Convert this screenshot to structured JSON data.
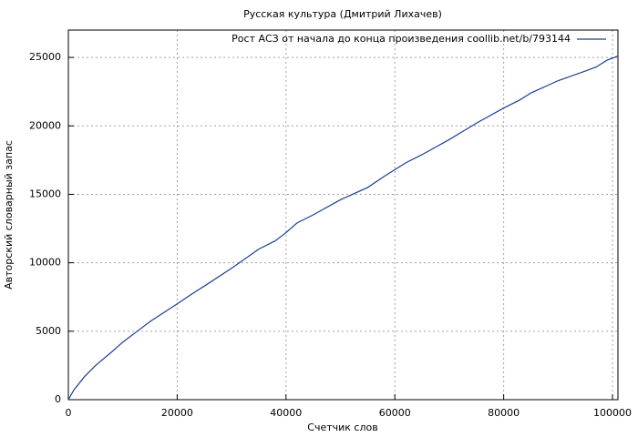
{
  "chart_data": {
    "type": "line",
    "title": "Русская культура (Дмитрий Лихачев)",
    "x_label": "Счетчик слов",
    "y_label": "Авторский словарный запас",
    "x": [
      0,
      1000,
      3000,
      5000,
      8000,
      10000,
      13000,
      15000,
      20000,
      23000,
      25000,
      30000,
      35000,
      38000,
      40000,
      42000,
      45000,
      50000,
      55000,
      58000,
      62000,
      65000,
      70000,
      75000,
      80000,
      83000,
      85000,
      90000,
      95000,
      97000,
      99000,
      101000
    ],
    "series": [
      {
        "name": "Рост АСЗ от начала до конца произведения coollib.net/b/793144",
        "color": "#1a3f96",
        "values": [
          0,
          700,
          1700,
          2500,
          3500,
          4200,
          5100,
          5700,
          7000,
          7800,
          8300,
          9600,
          11000,
          11600,
          12200,
          12900,
          13500,
          14600,
          15500,
          16300,
          17300,
          17900,
          19000,
          20200,
          21300,
          21900,
          22400,
          23300,
          24000,
          24300,
          24800,
          25100
        ]
      }
    ],
    "xlim": [
      0,
      101000
    ],
    "ylim": [
      0,
      27000
    ],
    "xticks": [
      0,
      20000,
      40000,
      60000,
      80000,
      100000
    ],
    "yticks": [
      0,
      5000,
      10000,
      15000,
      20000,
      25000
    ],
    "grid": true,
    "legend": "top-right"
  }
}
